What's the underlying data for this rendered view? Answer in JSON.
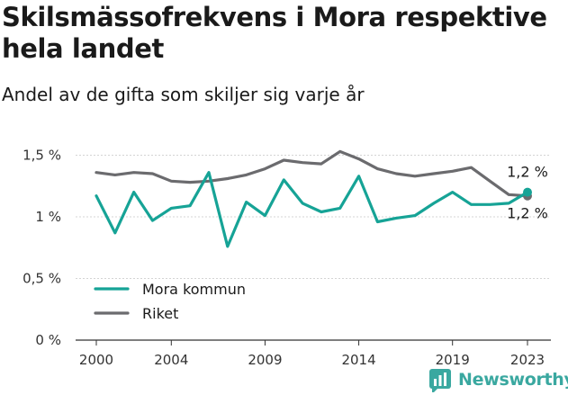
{
  "title": "Skilsmässofrekvens i Mora respektive hela landet",
  "subtitle": "Andel av de gifta som skiljer sig varje år",
  "brand": {
    "name": "Newsworthy",
    "icon": "newsworthy-logo-icon",
    "color": "#3aa8a0"
  },
  "chart_data": {
    "type": "line",
    "x": [
      2000,
      2001,
      2002,
      2003,
      2004,
      2005,
      2006,
      2007,
      2008,
      2009,
      2010,
      2011,
      2012,
      2013,
      2014,
      2015,
      2016,
      2017,
      2018,
      2019,
      2020,
      2021,
      2022,
      2023
    ],
    "xticks": [
      2000,
      2004,
      2009,
      2014,
      2019,
      2023
    ],
    "yticks": [
      {
        "value": 0,
        "label": "0 %"
      },
      {
        "value": 0.5,
        "label": "0,5 %"
      },
      {
        "value": 1,
        "label": "1 %"
      },
      {
        "value": 1.5,
        "label": "1,5 %"
      }
    ],
    "ylim": [
      0,
      1.6
    ],
    "grid": "horizontal",
    "legend_position": "bottom-left",
    "series": [
      {
        "name": "Mora kommun",
        "color": "#16a396",
        "values": [
          1.17,
          0.87,
          1.2,
          0.97,
          1.07,
          1.09,
          1.36,
          0.76,
          1.12,
          1.01,
          1.3,
          1.11,
          1.04,
          1.07,
          1.33,
          0.96,
          0.99,
          1.01,
          1.11,
          1.2,
          1.1,
          1.1,
          1.11,
          1.2
        ],
        "end_label": "1,2 %"
      },
      {
        "name": "Riket",
        "color": "#6b6b6e",
        "values": [
          1.36,
          1.34,
          1.36,
          1.35,
          1.29,
          1.28,
          1.29,
          1.31,
          1.34,
          1.39,
          1.46,
          1.44,
          1.43,
          1.53,
          1.47,
          1.39,
          1.35,
          1.33,
          1.35,
          1.37,
          1.4,
          1.29,
          1.18,
          1.17
        ],
        "end_label": "1,2 %"
      }
    ]
  }
}
